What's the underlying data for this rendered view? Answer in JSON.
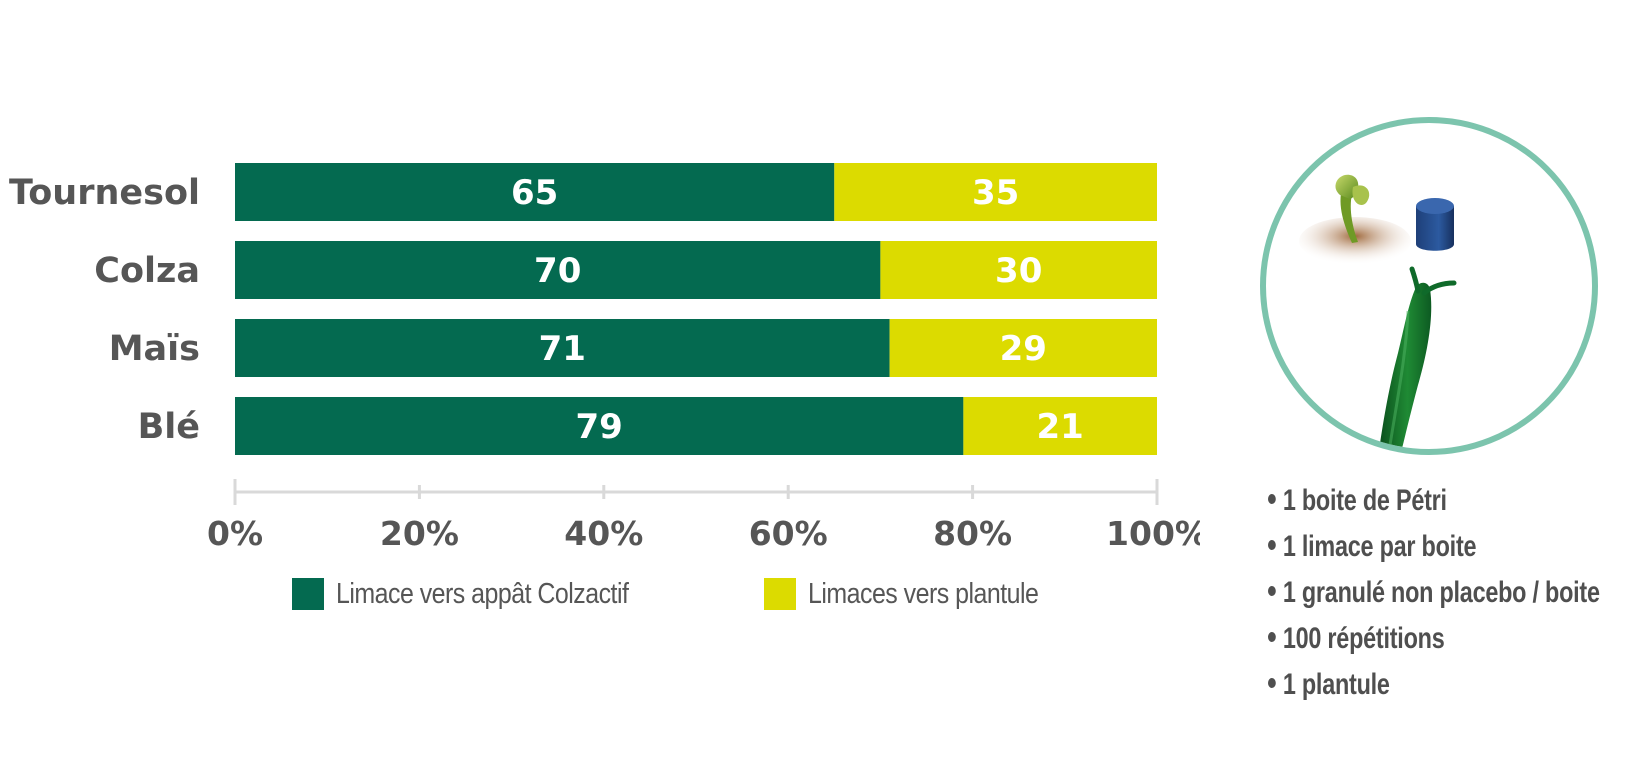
{
  "chart_data": {
    "type": "bar",
    "orientation": "horizontal",
    "stacked": true,
    "categories": [
      "Tournesol",
      "Colza",
      "Maïs",
      "Blé"
    ],
    "series": [
      {
        "name": "Limace vers appât Colzactif",
        "values": [
          65,
          70,
          71,
          79
        ],
        "color": "#046a50"
      },
      {
        "name": "Limaces vers plantule",
        "values": [
          35,
          30,
          29,
          21
        ],
        "color": "#dcdb00"
      }
    ],
    "xlim": [
      0,
      100
    ],
    "xticks": [
      "0%",
      "20%",
      "40%",
      "60%",
      "80%",
      "100%"
    ],
    "grid": false,
    "legend_position": "bottom"
  },
  "notes": [
    "1 boite de Pétri",
    "1 limace par boite",
    "1 granulé non placebo / boite",
    "100 répétitions",
    "1 plantule"
  ],
  "colors": {
    "axis": "#d9d9d9",
    "label": "#565656",
    "circle": "#7cc4ad"
  },
  "icons": [
    "seedling-icon",
    "bait-pellet-icon",
    "slug-icon"
  ]
}
